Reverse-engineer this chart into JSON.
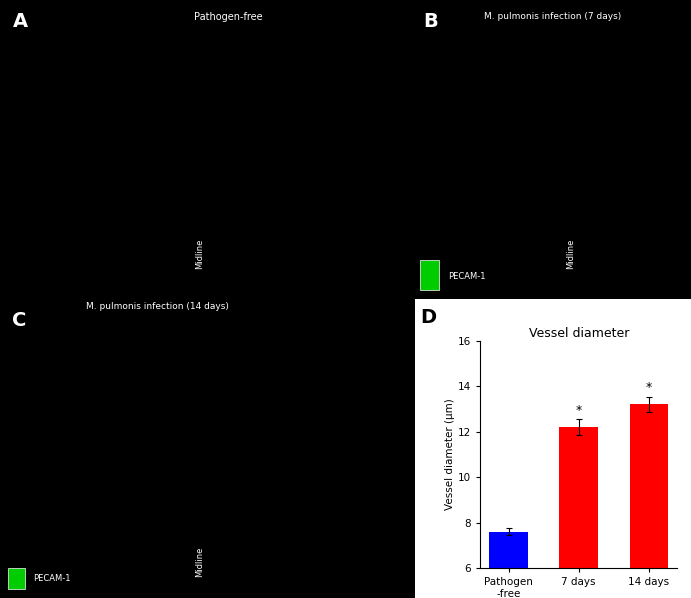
{
  "title": "Vessel diameter",
  "ylabel": "Vessel diameter (μm)",
  "categories": [
    "Pathogen\n-free",
    "7 days",
    "14 days"
  ],
  "values": [
    7.6,
    12.2,
    13.2
  ],
  "errors": [
    0.15,
    0.35,
    0.35
  ],
  "bar_colors": [
    "#0000ff",
    "#ff0000",
    "#ff0000"
  ],
  "ylim": [
    6,
    16
  ],
  "yticks": [
    6,
    8,
    10,
    12,
    14,
    16
  ],
  "xlabel_group": "M. pulmonis",
  "significance_stars": [
    "",
    "*",
    "*"
  ],
  "figsize": [
    6.91,
    5.98
  ],
  "dpi": 100,
  "bar_width": 0.55,
  "title_fontsize": 9,
  "axis_fontsize": 7.5,
  "tick_fontsize": 7.5,
  "star_fontsize": 9,
  "panel_label": "D",
  "panel_label_fontsize": 14,
  "micro_bg": "#000000",
  "chart_bg": "#ffffff",
  "micro_green": "#00cc00",
  "label_7days": "7 days",
  "label_14days": "14 days",
  "label_pathogen": "Pathogen\n-free"
}
